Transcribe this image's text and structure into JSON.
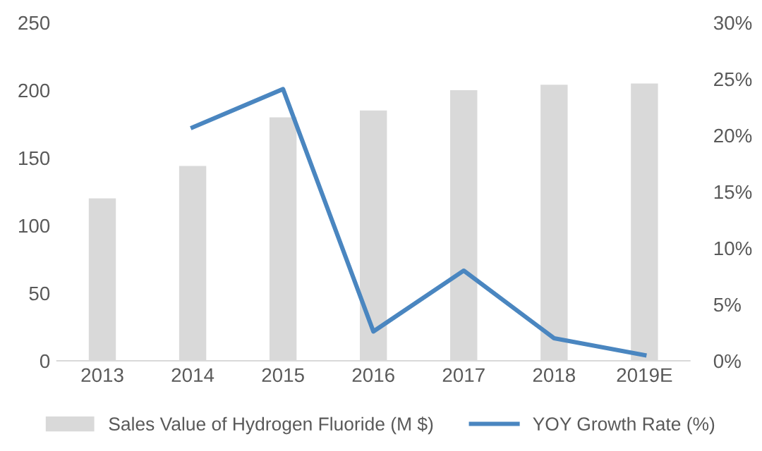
{
  "chart_data": {
    "type": "bar",
    "categories": [
      "2013",
      "2014",
      "2015",
      "2016",
      "2017",
      "2018",
      "2019E"
    ],
    "series": [
      {
        "name": "Sales Value of Hydrogen Fluoride (M $)",
        "color": "#d9d9d9",
        "values": [
          120,
          144,
          180,
          185,
          200,
          204,
          205
        ]
      },
      {
        "name": "YOY Growth Rate (%)",
        "color": "#4a86c0",
        "type": "line",
        "axis": "y2",
        "values": [
          null,
          20.7,
          24.1,
          2.6,
          8.0,
          2.0,
          0.5
        ]
      }
    ],
    "ylim": [
      0,
      250
    ],
    "yticks": [
      0,
      50,
      100,
      150,
      200,
      250
    ],
    "y2lim": [
      0,
      30
    ],
    "y2ticks": [
      {
        "value": 0,
        "label": "0%"
      },
      {
        "value": 5,
        "label": "5%"
      },
      {
        "value": 10,
        "label": "10%"
      },
      {
        "value": 15,
        "label": "15%"
      },
      {
        "value": 20,
        "label": "20%"
      },
      {
        "value": 25,
        "label": "25%"
      },
      {
        "value": 30,
        "label": "30%"
      }
    ],
    "legend": "bottom",
    "grid": false
  }
}
